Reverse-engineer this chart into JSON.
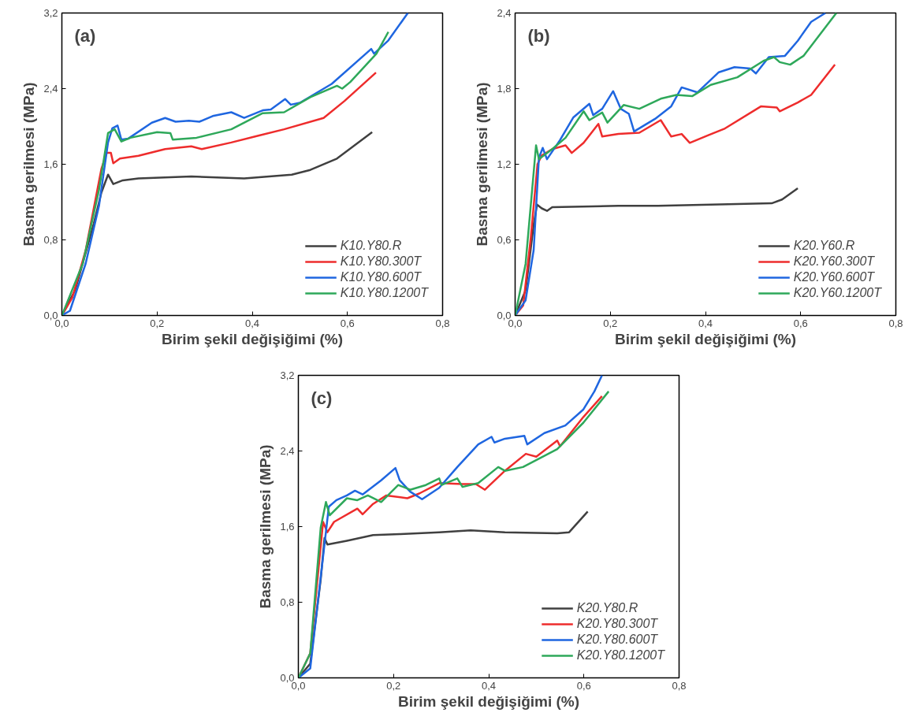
{
  "chart_data": [
    {
      "type": "line",
      "xlabel": "Birim şekil değişiğimi (%)",
      "ylabel": "Basma gerilmesi (MPa)",
      "annotations": [
        "(a)"
      ],
      "xlim": [
        0,
        0.8
      ],
      "ylim": [
        0,
        3.2
      ],
      "xticks": [
        {
          "value": 0,
          "label": "0,0"
        },
        {
          "value": 0.2,
          "label": "0,2"
        },
        {
          "value": 0.4,
          "label": "0,4"
        },
        {
          "value": 0.6,
          "label": "0,6"
        },
        {
          "value": 0.8,
          "label": "0,8"
        }
      ],
      "yticks": [
        {
          "value": 0,
          "label": "0,0"
        },
        {
          "value": 0.8,
          "label": "0,8"
        },
        {
          "value": 1.6,
          "label": "1,6"
        },
        {
          "value": 2.4,
          "label": "2,4"
        },
        {
          "value": 3.2,
          "label": "3,2"
        }
      ],
      "grid": false,
      "legend": "bottom right",
      "line_style": "solid",
      "series": [
        {
          "name": "K10.Y80.R",
          "color": "#404040",
          "x": [
            0,
            0.028,
            0.067,
            0.083,
            0.097,
            0.108,
            0.128,
            0.161,
            0.272,
            0.383,
            0.483,
            0.522,
            0.578,
            0.652
          ],
          "values": [
            0,
            0.27,
            0.97,
            1.3,
            1.49,
            1.39,
            1.43,
            1.45,
            1.47,
            1.45,
            1.49,
            1.54,
            1.66,
            1.94
          ]
        },
        {
          "name": "K10.Y80.300T",
          "color": "#ee2c2c",
          "x": [
            0,
            0.022,
            0.05,
            0.083,
            0.094,
            0.103,
            0.108,
            0.122,
            0.161,
            0.217,
            0.272,
            0.294,
            0.356,
            0.411,
            0.467,
            0.55,
            0.594,
            0.66
          ],
          "values": [
            0,
            0.19,
            0.69,
            1.55,
            1.72,
            1.72,
            1.61,
            1.66,
            1.69,
            1.76,
            1.79,
            1.76,
            1.83,
            1.9,
            1.97,
            2.09,
            2.27,
            2.57
          ]
        },
        {
          "name": "K10.Y80.600T",
          "color": "#1f66e0",
          "x": [
            0,
            0.017,
            0.05,
            0.078,
            0.097,
            0.106,
            0.117,
            0.125,
            0.139,
            0.189,
            0.217,
            0.239,
            0.267,
            0.289,
            0.317,
            0.356,
            0.383,
            0.422,
            0.439,
            0.469,
            0.481,
            0.5,
            0.567,
            0.65,
            0.656,
            0.686,
            0.727
          ],
          "values": [
            0,
            0.05,
            0.55,
            1.16,
            1.83,
            1.98,
            2.01,
            1.86,
            1.87,
            2.04,
            2.09,
            2.05,
            2.06,
            2.05,
            2.11,
            2.15,
            2.09,
            2.17,
            2.18,
            2.29,
            2.23,
            2.25,
            2.45,
            2.82,
            2.77,
            2.91,
            3.2
          ]
        },
        {
          "name": "K10.Y80.1200T",
          "color": "#2ea85a",
          "x": [
            0,
            0.044,
            0.078,
            0.097,
            0.111,
            0.125,
            0.144,
            0.2,
            0.228,
            0.233,
            0.283,
            0.356,
            0.422,
            0.467,
            0.522,
            0.578,
            0.589,
            0.606,
            0.661,
            0.686
          ],
          "values": [
            0,
            0.55,
            1.33,
            1.93,
            1.97,
            1.84,
            1.88,
            1.94,
            1.93,
            1.86,
            1.88,
            1.97,
            2.14,
            2.15,
            2.31,
            2.43,
            2.4,
            2.47,
            2.77,
            3.0
          ]
        }
      ]
    },
    {
      "type": "line",
      "xlabel": "Birim şekil değişiğimi (%)",
      "ylabel": "Basma gerilmesi (MPa)",
      "annotations": [
        "(b)"
      ],
      "xlim": [
        0,
        0.8
      ],
      "ylim": [
        0,
        2.4
      ],
      "xticks": [
        {
          "value": 0,
          "label": "0,0"
        },
        {
          "value": 0.2,
          "label": "0,2"
        },
        {
          "value": 0.4,
          "label": "0,4"
        },
        {
          "value": 0.6,
          "label": "0,6"
        },
        {
          "value": 0.8,
          "label": "0,8"
        }
      ],
      "yticks": [
        {
          "value": 0,
          "label": "0,0"
        },
        {
          "value": 0.6,
          "label": "0,6"
        },
        {
          "value": 1.2,
          "label": "1,2"
        },
        {
          "value": 1.8,
          "label": "1,8"
        },
        {
          "value": 2.4,
          "label": "2,4"
        }
      ],
      "grid": false,
      "legend": "bottom right",
      "line_style": "solid",
      "series": [
        {
          "name": "K20.Y60.R",
          "color": "#404040",
          "x": [
            0,
            0.022,
            0.039,
            0.046,
            0.056,
            0.067,
            0.078,
            0.217,
            0.3,
            0.411,
            0.539,
            0.561,
            0.594
          ],
          "values": [
            0,
            0.2,
            0.72,
            0.88,
            0.85,
            0.83,
            0.86,
            0.87,
            0.87,
            0.88,
            0.89,
            0.92,
            1.01
          ]
        },
        {
          "name": "K20.Y60.300T",
          "color": "#ee2c2c",
          "x": [
            0,
            0.017,
            0.033,
            0.047,
            0.056,
            0.078,
            0.106,
            0.119,
            0.144,
            0.175,
            0.183,
            0.217,
            0.261,
            0.306,
            0.328,
            0.35,
            0.367,
            0.406,
            0.439,
            0.517,
            0.55,
            0.556,
            0.594,
            0.622,
            0.672
          ],
          "values": [
            0,
            0.08,
            0.62,
            1.2,
            1.27,
            1.32,
            1.35,
            1.29,
            1.37,
            1.52,
            1.42,
            1.44,
            1.45,
            1.55,
            1.42,
            1.44,
            1.37,
            1.43,
            1.48,
            1.66,
            1.65,
            1.62,
            1.69,
            1.75,
            1.99
          ]
        },
        {
          "name": "K20.Y60.600T",
          "color": "#1f66e0",
          "x": [
            0,
            0.022,
            0.039,
            0.05,
            0.058,
            0.067,
            0.094,
            0.122,
            0.156,
            0.164,
            0.183,
            0.206,
            0.222,
            0.239,
            0.25,
            0.294,
            0.328,
            0.35,
            0.383,
            0.428,
            0.461,
            0.494,
            0.506,
            0.533,
            0.567,
            0.594,
            0.622,
            0.652
          ],
          "values": [
            0,
            0.12,
            0.52,
            1.25,
            1.33,
            1.24,
            1.39,
            1.57,
            1.68,
            1.59,
            1.64,
            1.78,
            1.64,
            1.6,
            1.46,
            1.56,
            1.66,
            1.81,
            1.77,
            1.93,
            1.97,
            1.96,
            1.92,
            2.05,
            2.06,
            2.18,
            2.33,
            2.4
          ]
        },
        {
          "name": "K20.Y60.1200T",
          "color": "#2ea85a",
          "x": [
            0,
            0.022,
            0.044,
            0.05,
            0.078,
            0.106,
            0.144,
            0.156,
            0.183,
            0.194,
            0.228,
            0.261,
            0.306,
            0.339,
            0.372,
            0.411,
            0.467,
            0.522,
            0.544,
            0.556,
            0.578,
            0.606,
            0.675
          ],
          "values": [
            0,
            0.41,
            1.35,
            1.24,
            1.32,
            1.41,
            1.62,
            1.55,
            1.61,
            1.53,
            1.67,
            1.64,
            1.72,
            1.75,
            1.74,
            1.83,
            1.89,
            2.02,
            2.05,
            2.01,
            1.99,
            2.06,
            2.4
          ]
        }
      ]
    },
    {
      "type": "line",
      "xlabel": "Birim şekil değişiğimi (%)",
      "ylabel": "Basma gerilmesi (MPa)",
      "annotations": [
        "(c)"
      ],
      "xlim": [
        0,
        0.8
      ],
      "ylim": [
        0,
        3.2
      ],
      "xticks": [
        {
          "value": 0,
          "label": "0,0"
        },
        {
          "value": 0.2,
          "label": "0,2"
        },
        {
          "value": 0.4,
          "label": "0,4"
        },
        {
          "value": 0.6,
          "label": "0,6"
        },
        {
          "value": 0.8,
          "label": "0,8"
        }
      ],
      "yticks": [
        {
          "value": 0,
          "label": "0,0"
        },
        {
          "value": 0.8,
          "label": "0,8"
        },
        {
          "value": 1.6,
          "label": "1,6"
        },
        {
          "value": 2.4,
          "label": "2,4"
        },
        {
          "value": 3.2,
          "label": "3,2"
        }
      ],
      "grid": false,
      "legend": "bottom right",
      "line_style": "solid",
      "series": [
        {
          "name": "K20.Y80.R",
          "color": "#404040",
          "x": [
            0,
            0.025,
            0.047,
            0.055,
            0.061,
            0.102,
            0.157,
            0.213,
            0.296,
            0.362,
            0.434,
            0.544,
            0.569,
            0.608
          ],
          "values": [
            0,
            0.15,
            1.04,
            1.48,
            1.41,
            1.45,
            1.51,
            1.52,
            1.54,
            1.56,
            1.54,
            1.53,
            1.54,
            1.76
          ]
        },
        {
          "name": "K20.Y80.300T",
          "color": "#ee2c2c",
          "x": [
            0,
            0.025,
            0.052,
            0.061,
            0.075,
            0.124,
            0.135,
            0.157,
            0.185,
            0.229,
            0.254,
            0.296,
            0.345,
            0.373,
            0.392,
            0.434,
            0.478,
            0.5,
            0.544,
            0.55,
            0.599,
            0.638
          ],
          "values": [
            0,
            0.26,
            1.65,
            1.54,
            1.65,
            1.79,
            1.73,
            1.84,
            1.93,
            1.9,
            1.95,
            2.06,
            2.05,
            2.05,
            1.99,
            2.19,
            2.37,
            2.34,
            2.51,
            2.45,
            2.76,
            2.98
          ]
        },
        {
          "name": "K20.Y80.600T",
          "color": "#1f66e0",
          "x": [
            0,
            0.025,
            0.064,
            0.08,
            0.102,
            0.119,
            0.135,
            0.174,
            0.204,
            0.213,
            0.235,
            0.26,
            0.296,
            0.334,
            0.378,
            0.406,
            0.412,
            0.434,
            0.475,
            0.481,
            0.517,
            0.561,
            0.599,
            0.622,
            0.638
          ],
          "values": [
            0,
            0.1,
            1.81,
            1.88,
            1.93,
            1.98,
            1.94,
            2.09,
            2.22,
            2.09,
            1.97,
            1.89,
            2.01,
            2.23,
            2.47,
            2.55,
            2.49,
            2.53,
            2.56,
            2.47,
            2.59,
            2.67,
            2.84,
            3.03,
            3.2
          ]
        },
        {
          "name": "K20.Y80.1200T",
          "color": "#2ea85a",
          "x": [
            0,
            0.025,
            0.047,
            0.058,
            0.066,
            0.102,
            0.124,
            0.146,
            0.174,
            0.21,
            0.235,
            0.268,
            0.296,
            0.301,
            0.334,
            0.345,
            0.378,
            0.42,
            0.434,
            0.472,
            0.544,
            0.599,
            0.652
          ],
          "values": [
            0,
            0.26,
            1.59,
            1.86,
            1.72,
            1.9,
            1.88,
            1.93,
            1.86,
            2.04,
            1.99,
            2.04,
            2.11,
            2.04,
            2.11,
            2.02,
            2.06,
            2.23,
            2.19,
            2.23,
            2.42,
            2.7,
            3.03
          ]
        }
      ]
    }
  ]
}
